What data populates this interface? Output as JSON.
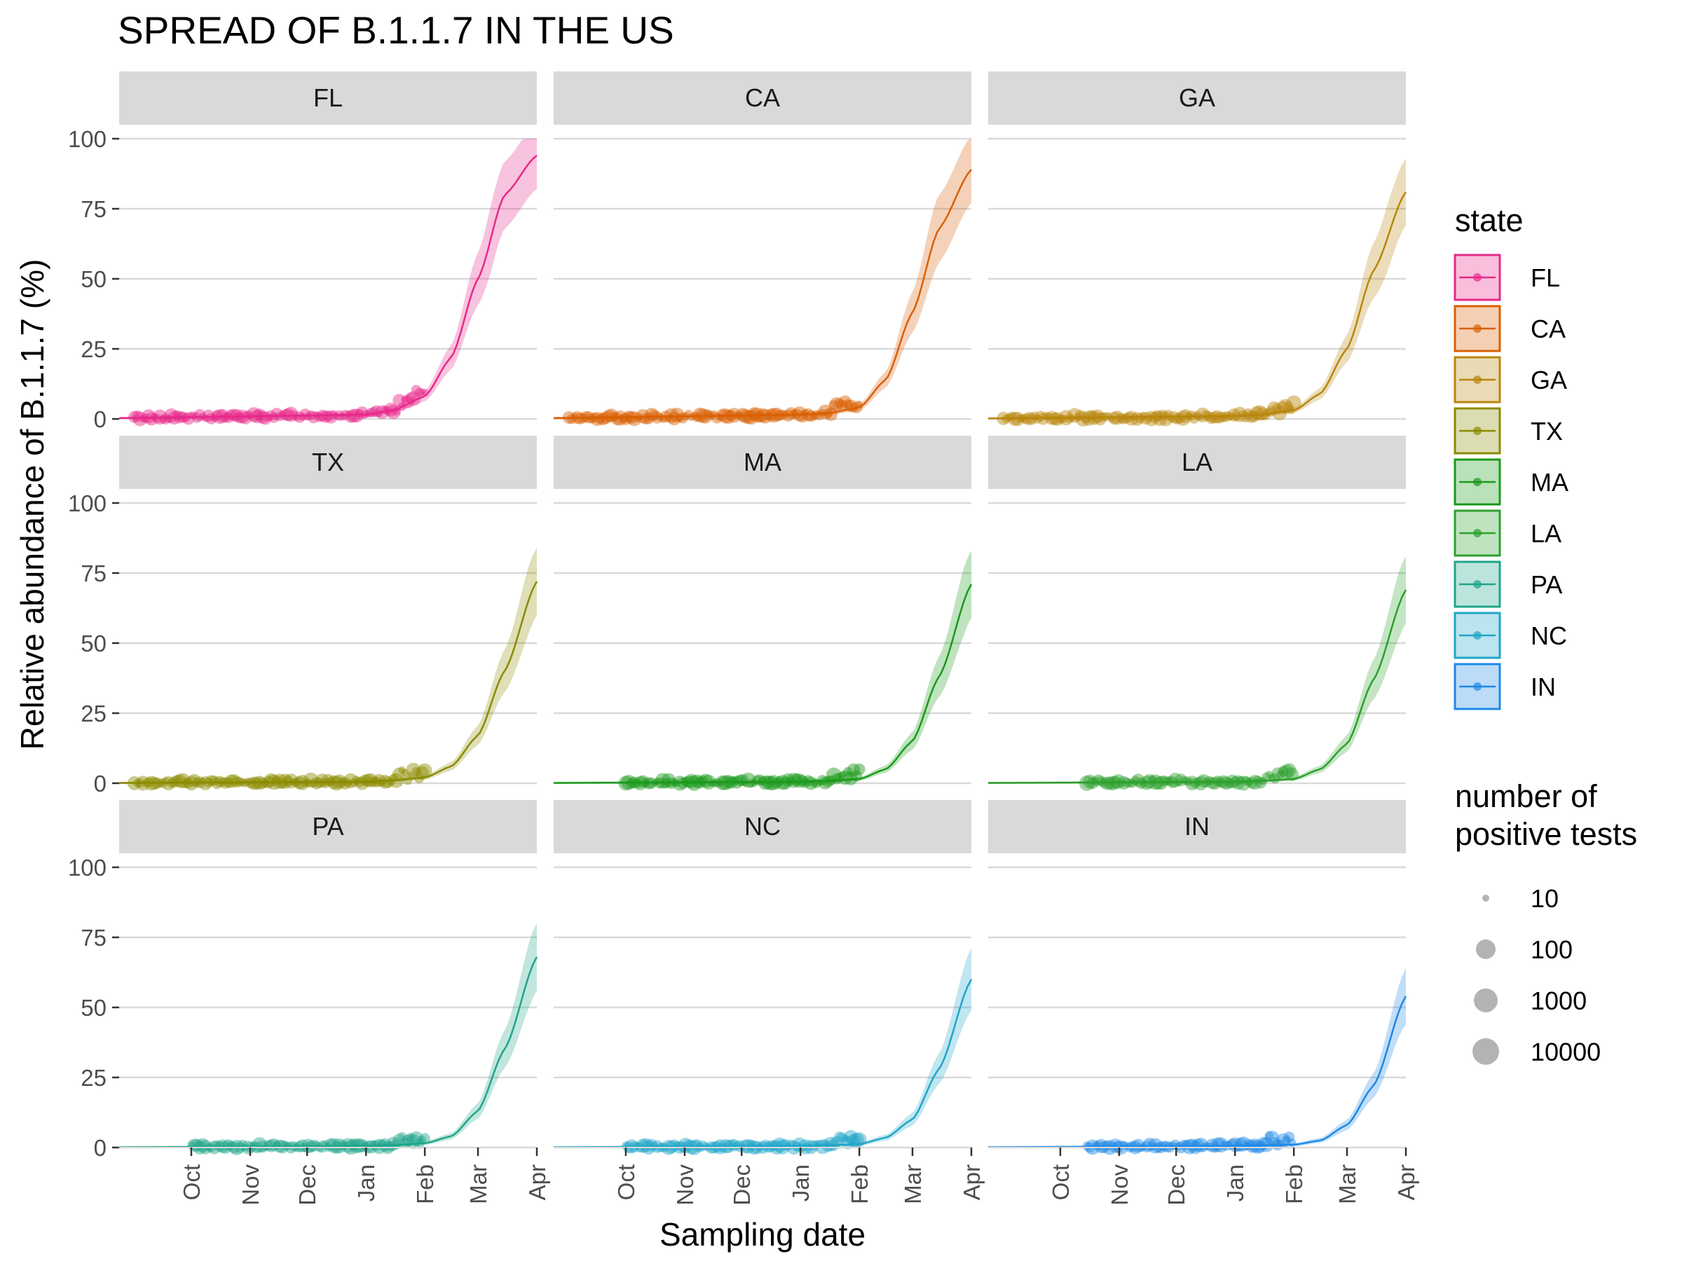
{
  "chart_data": {
    "type": "line",
    "title": "SPREAD OF B.1.1.7 IN THE US",
    "xlabel": "Sampling date",
    "ylabel": "Relative abundance of B.1.1.7 (%)",
    "ylim": [
      0,
      100
    ],
    "yticks": [
      0,
      25,
      50,
      75,
      100
    ],
    "x_ticks": [
      "Oct",
      "Nov",
      "Dec",
      "Jan",
      "Feb",
      "Mar",
      "Apr"
    ],
    "x_units": "month-start positions (Sep 1, 2020 to Apr 1, 2021)",
    "grid": "horizontal major",
    "legend_color_title": "state",
    "legend_size_title": "number of\npositive tests",
    "legend_size_labels": [
      "10",
      "100",
      "1000",
      "10000"
    ],
    "panels": [
      {
        "state": "FL",
        "color": "#E7298A",
        "curve_x": [
          "Jan 1",
          "Jan 15",
          "Feb 1",
          "Feb 15",
          "Mar 1",
          "Mar 15",
          "Apr 1"
        ],
        "curve_y": [
          1.5,
          3,
          8,
          22,
          50,
          80,
          94
        ],
        "points_start": "Sep 1",
        "points_end": "Feb 1"
      },
      {
        "state": "CA",
        "color": "#D95F02",
        "curve_x": [
          "Jan 1",
          "Jan 15",
          "Feb 1",
          "Feb 15",
          "Mar 1",
          "Mar 15",
          "Apr 1"
        ],
        "curve_y": [
          1.5,
          2,
          4,
          14,
          38,
          68,
          89
        ],
        "points_start": "Sep 1",
        "points_end": "Feb 1"
      },
      {
        "state": "GA",
        "color": "#B8860B",
        "curve_x": [
          "Jan 1",
          "Jan 15",
          "Feb 1",
          "Feb 15",
          "Mar 1",
          "Mar 15",
          "Apr 1"
        ],
        "curve_y": [
          1,
          1.5,
          3,
          9,
          25,
          53,
          81
        ],
        "points_start": "Sep 1",
        "points_end": "Feb 1"
      },
      {
        "state": "TX",
        "color": "#8B8B00",
        "curve_x": [
          "Jan 1",
          "Jan 15",
          "Feb 1",
          "Feb 15",
          "Mar 1",
          "Mar 15",
          "Apr 1"
        ],
        "curve_y": [
          0.5,
          1,
          2,
          6,
          17,
          40,
          72
        ],
        "points_start": "Sep 1",
        "points_end": "Feb 1"
      },
      {
        "state": "MA",
        "color": "#1A9A1A",
        "curve_x": [
          "Jan 1",
          "Jan 15",
          "Feb 1",
          "Feb 15",
          "Mar 1",
          "Mar 15",
          "Apr 1"
        ],
        "curve_y": [
          0.5,
          0.8,
          1.5,
          5,
          15,
          38,
          71
        ],
        "points_start": "Oct 1",
        "points_end": "Feb 1"
      },
      {
        "state": "LA",
        "color": "#2CA02C",
        "curve_x": [
          "Jan 1",
          "Jan 15",
          "Feb 1",
          "Feb 15",
          "Mar 1",
          "Mar 15",
          "Apr 1"
        ],
        "curve_y": [
          0.5,
          0.8,
          1.5,
          5,
          14,
          37,
          69
        ],
        "points_start": "Oct 15",
        "points_end": "Feb 1"
      },
      {
        "state": "PA",
        "color": "#1FA58A",
        "curve_x": [
          "Jan 1",
          "Jan 15",
          "Feb 1",
          "Feb 15",
          "Mar 1",
          "Mar 15",
          "Apr 1"
        ],
        "curve_y": [
          0.5,
          0.8,
          1.5,
          4,
          13,
          35,
          68
        ],
        "points_start": "Oct 1",
        "points_end": "Feb 1"
      },
      {
        "state": "NC",
        "color": "#1EA5C8",
        "curve_x": [
          "Jan 1",
          "Jan 15",
          "Feb 1",
          "Feb 15",
          "Mar 1",
          "Mar 15",
          "Apr 1"
        ],
        "curve_y": [
          0.5,
          0.8,
          1.2,
          3.5,
          10,
          28,
          60
        ],
        "points_start": "Oct 1",
        "points_end": "Feb 1"
      },
      {
        "state": "IN",
        "color": "#1E88E5",
        "curve_x": [
          "Jan 1",
          "Jan 15",
          "Feb 1",
          "Feb 15",
          "Mar 1",
          "Mar 15",
          "Apr 1"
        ],
        "curve_y": [
          0.5,
          0.8,
          1,
          2.5,
          8,
          22,
          54
        ],
        "points_start": "Oct 15",
        "points_end": "Feb 1"
      }
    ]
  }
}
